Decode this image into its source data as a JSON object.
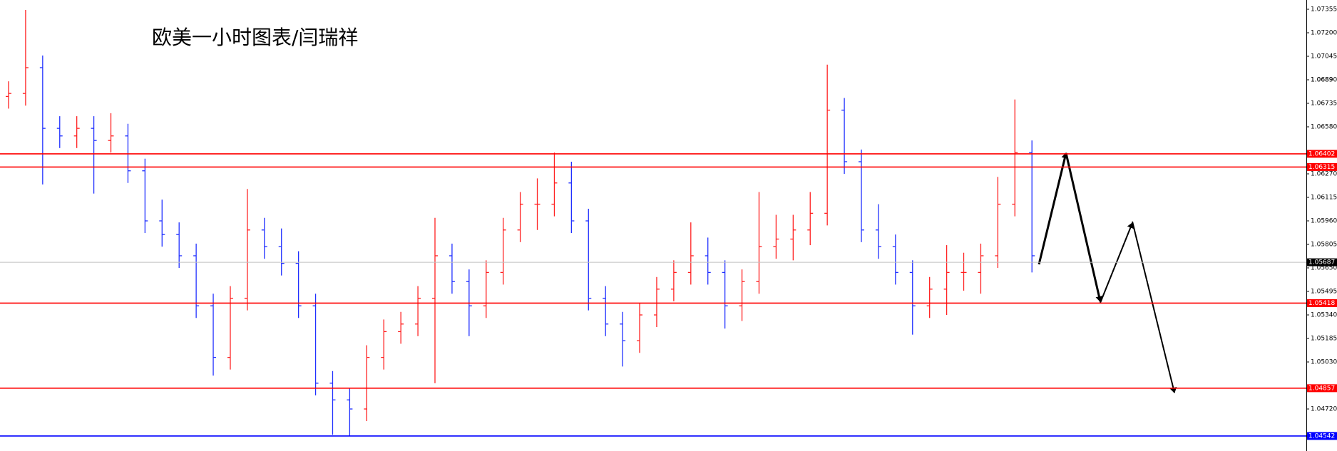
{
  "chart_data": {
    "type": "ohlc",
    "title": "欧美一小时图表/闫瑞祥",
    "up_color": "#ff2020",
    "down_color": "#2030ff",
    "ylim": [
      1.04443,
      1.07416
    ],
    "yticks": [
      1.07355,
      {
        "value": 1.072,
        "label": "1.07200"
      },
      1.07045,
      1.0689,
      {
        "value": 1.0689,
        "label": "1.06890"
      },
      1.06735,
      {
        "value": 1.0658,
        "label": "1.06580"
      },
      {
        "value": 1.0627,
        "label": "1.06270"
      },
      1.06115,
      {
        "value": 1.0596,
        "label": "1.05960"
      },
      1.05805,
      {
        "value": 1.0565,
        "label": "1.05650"
      },
      1.05495,
      {
        "value": 1.0534,
        "label": "1.05340"
      },
      1.05185,
      {
        "value": 1.0503,
        "label": "1.05030"
      },
      {
        "value": 1.0472,
        "label": "1.04720"
      }
    ],
    "levels": [
      {
        "value": 1.06402,
        "color": "#ff0000"
      },
      {
        "value": 1.06315,
        "color": "#ff0000"
      },
      {
        "value": 1.05687,
        "color": "#c0c0c0",
        "label_color": "#000000"
      },
      {
        "value": 1.05418,
        "color": "#ff0000"
      },
      {
        "value": 1.04857,
        "color": "#ff0000"
      },
      {
        "value": 1.04542,
        "color": "#0000ff"
      }
    ],
    "open": [
      1.0678,
      1.068,
      1.0697,
      1.0657,
      1.0652,
      1.0657,
      1.0649,
      1.0652,
      1.0629,
      1.0596,
      1.0587,
      1.0573,
      1.054,
      1.0506,
      1.0545,
      1.059,
      1.0579,
      1.0568,
      1.054,
      1.0489,
      1.0478,
      1.0472,
      1.0506,
      1.0523,
      1.0528,
      1.0545,
      1.0573,
      1.0556,
      1.054,
      1.0562,
      1.059,
      1.0607,
      1.0607,
      1.0621,
      1.0596,
      1.0545,
      1.0528,
      1.0517,
      1.0534,
      1.0551,
      1.0562,
      1.0573,
      1.0562,
      1.054,
      1.0556,
      1.0579,
      1.0584,
      1.059,
      1.0601,
      1.0669,
      1.0635,
      1.059,
      1.0579,
      1.0562,
      1.054,
      1.0551,
      1.0562,
      1.0562,
      1.0573,
      1.0607,
      1.0641
    ],
    "high": [
      1.0688,
      1.0735,
      1.0705,
      1.0665,
      1.0665,
      1.0665,
      1.0667,
      1.066,
      1.0637,
      1.061,
      1.0595,
      1.0581,
      1.0548,
      1.0553,
      1.0617,
      1.0598,
      1.0591,
      1.0576,
      1.0548,
      1.0497,
      1.0486,
      1.0514,
      1.0531,
      1.0536,
      1.0553,
      1.0598,
      1.0581,
      1.0564,
      1.057,
      1.0598,
      1.0615,
      1.0624,
      1.0641,
      1.0635,
      1.0604,
      1.0553,
      1.0536,
      1.0542,
      1.0559,
      1.057,
      1.0595,
      1.0585,
      1.057,
      1.0564,
      1.0615,
      1.06,
      1.06,
      1.0615,
      1.0699,
      1.0677,
      1.0643,
      1.0607,
      1.0587,
      1.057,
      1.0559,
      1.058,
      1.0575,
      1.0581,
      1.0625,
      1.0676,
      1.0649
    ],
    "low": [
      1.067,
      1.0672,
      1.062,
      1.0644,
      1.0644,
      1.0614,
      1.0641,
      1.0621,
      1.0588,
      1.0579,
      1.0565,
      1.0532,
      1.0494,
      1.0498,
      1.0537,
      1.0571,
      1.056,
      1.0532,
      1.0481,
      1.0455,
      1.0454,
      1.0464,
      1.0498,
      1.0515,
      1.052,
      1.0489,
      1.0548,
      1.052,
      1.0532,
      1.0554,
      1.0582,
      1.059,
      1.0599,
      1.0588,
      1.0537,
      1.052,
      1.05,
      1.0509,
      1.0526,
      1.0543,
      1.0554,
      1.0554,
      1.0525,
      1.053,
      1.0548,
      1.0571,
      1.057,
      1.058,
      1.0593,
      1.0627,
      1.0582,
      1.0571,
      1.0554,
      1.0521,
      1.0532,
      1.0534,
      1.055,
      1.0548,
      1.0565,
      1.0599,
      1.0562
    ],
    "close": [
      1.068,
      1.0697,
      1.0657,
      1.0652,
      1.0657,
      1.0649,
      1.0652,
      1.0629,
      1.0596,
      1.0587,
      1.0573,
      1.054,
      1.0506,
      1.0545,
      1.059,
      1.0579,
      1.0568,
      1.054,
      1.0489,
      1.0478,
      1.0472,
      1.0506,
      1.0523,
      1.0528,
      1.0545,
      1.0573,
      1.0556,
      1.054,
      1.0562,
      1.059,
      1.0607,
      1.0607,
      1.0621,
      1.0596,
      1.0545,
      1.0528,
      1.0517,
      1.0534,
      1.0551,
      1.0562,
      1.0573,
      1.0562,
      1.054,
      1.0556,
      1.0579,
      1.0584,
      1.059,
      1.0601,
      1.0669,
      1.0635,
      1.059,
      1.0579,
      1.0562,
      1.054,
      1.0551,
      1.0562,
      1.0562,
      1.0573,
      1.0607,
      1.0641,
      1.0573
    ]
  }
}
